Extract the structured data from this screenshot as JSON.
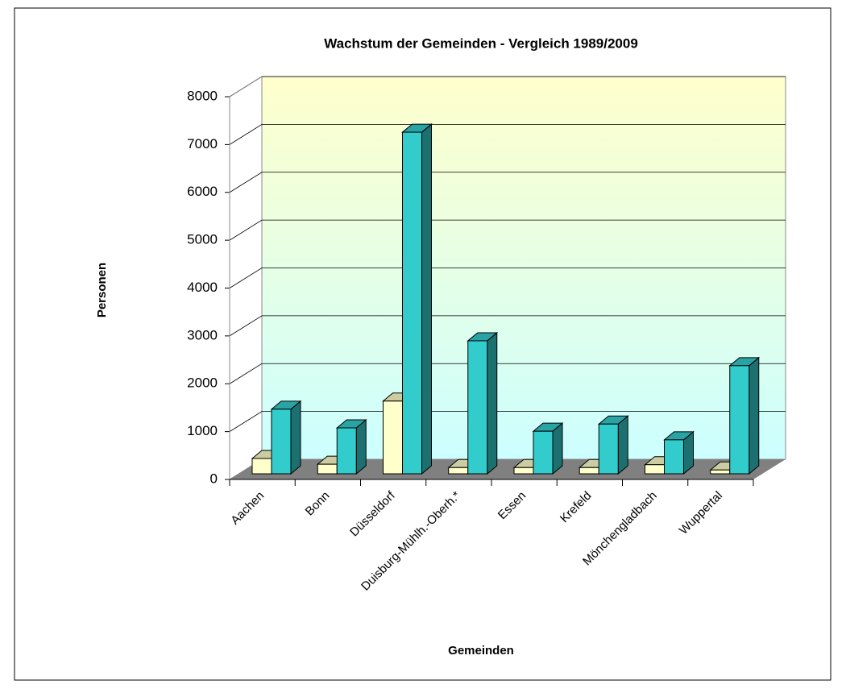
{
  "chart_data": {
    "type": "bar3d",
    "title": "Wachstum der Gemeinden - Vergleich 1989/2009",
    "x_label": "Gemeinden",
    "y_label": "Personen",
    "categories": [
      "Aachen",
      "Bonn",
      "Düsseldorf",
      "Duisburg-Mühlh.-Oberh.*",
      "Essen",
      "Krefeld",
      "Mönchengladbach",
      "Wuppertal"
    ],
    "series": [
      {
        "color": "#ffffcc",
        "values": [
          320,
          200,
          1520,
          130,
          130,
          130,
          190,
          80
        ]
      },
      {
        "color": "#33cccc",
        "values": [
          1350,
          960,
          7140,
          2780,
          890,
          1040,
          710,
          2260
        ]
      }
    ],
    "ylim": [
      0,
      8000
    ],
    "yticks": [
      0,
      1000,
      2000,
      3000,
      4000,
      5000,
      6000,
      7000,
      8000
    ],
    "grid": true
  }
}
